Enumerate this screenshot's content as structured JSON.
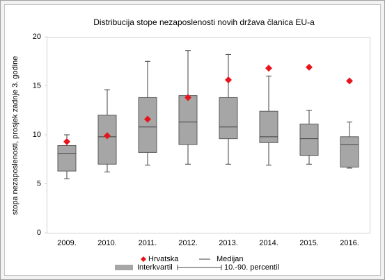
{
  "chart_data": {
    "type": "box",
    "title": "Distribucija stope nezaposlenosti novih država članica EU-a",
    "y_label": "stopa nezaposlenosti, prosjek zadnje 3. godine",
    "categories": [
      "2009.",
      "2010.",
      "2011.",
      "2012.",
      "2013.",
      "2014.",
      "2015.",
      "2016."
    ],
    "ylim": [
      0,
      20
    ],
    "yticks": [
      0,
      5,
      10,
      15,
      20
    ],
    "whiskers": {
      "name": "10.-90. percentil",
      "color": "#404040",
      "low": [
        5.5,
        6.2,
        6.9,
        7.0,
        7.0,
        6.9,
        7.0,
        6.6
      ],
      "high": [
        10.0,
        14.6,
        17.5,
        18.6,
        18.2,
        16.0,
        12.5,
        11.3
      ]
    },
    "iqr": {
      "name": "Interkvartil",
      "color": "#a6a6a6",
      "q1": [
        6.3,
        7.0,
        8.2,
        9.0,
        9.6,
        9.2,
        7.9,
        6.7
      ],
      "q3": [
        8.9,
        12.0,
        13.8,
        14.0,
        13.8,
        12.4,
        11.1,
        9.8
      ]
    },
    "median": {
      "name": "Medijan",
      "color": "#404040",
      "values": [
        8.1,
        9.8,
        10.8,
        11.3,
        10.8,
        9.8,
        9.6,
        9.0
      ]
    },
    "points": {
      "name": "Hrvatska",
      "color": "#e8141c",
      "values": [
        9.3,
        9.9,
        11.6,
        13.8,
        15.6,
        16.8,
        16.9,
        15.5
      ]
    }
  }
}
